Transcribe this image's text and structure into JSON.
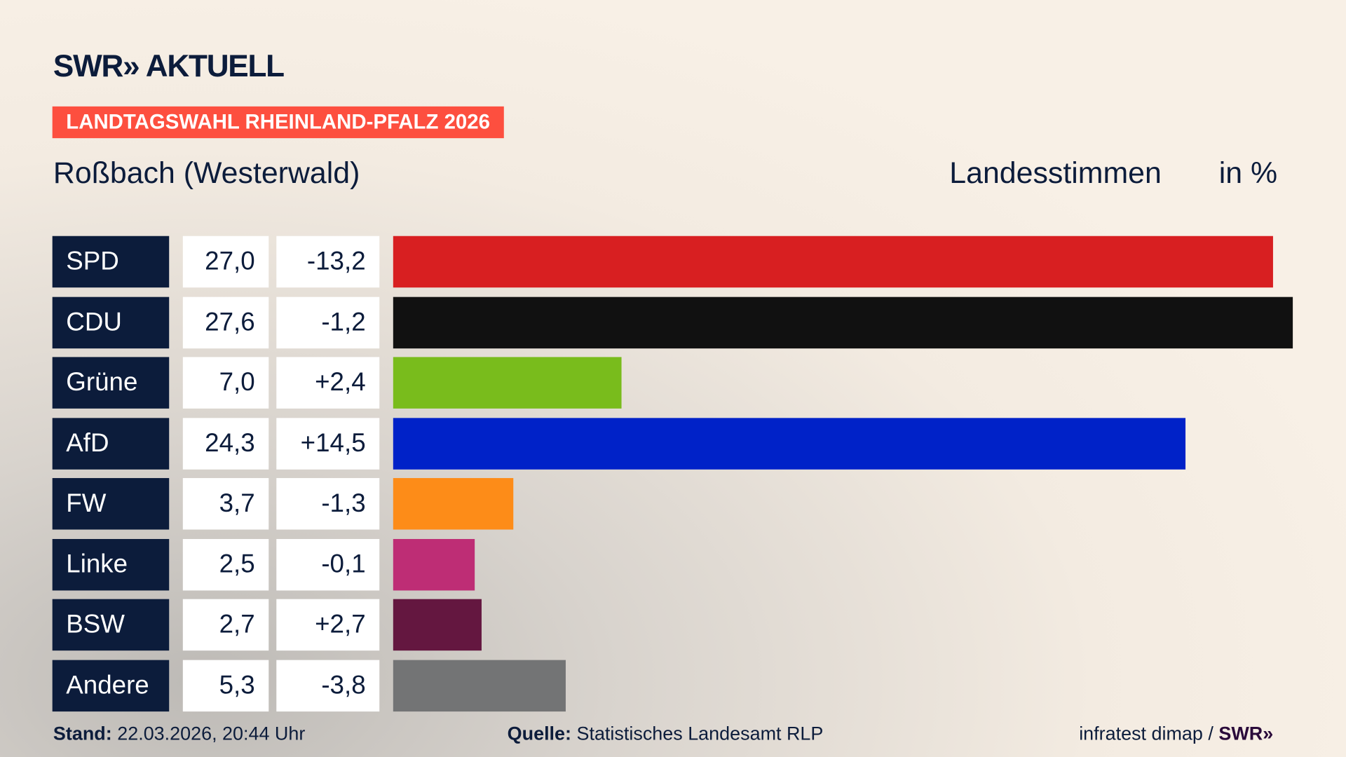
{
  "header": {
    "logo": "SWR» AKTUELL",
    "badge": "LANDTAGSWAHL RHEINLAND-PFALZ 2026",
    "location": "Roßbach (Westerwald)",
    "vote_type": "Landesstimmen",
    "unit": "in %"
  },
  "chart_data": {
    "type": "bar",
    "orientation": "horizontal",
    "xlim": [
      0,
      27.6
    ],
    "categories": [
      "SPD",
      "CDU",
      "Grüne",
      "AfD",
      "FW",
      "Linke",
      "BSW",
      "Andere"
    ],
    "values": [
      27.0,
      27.6,
      7.0,
      24.3,
      3.7,
      2.5,
      2.7,
      5.3
    ],
    "value_labels": [
      "27,0",
      "27,6",
      "7,0",
      "24,3",
      "3,7",
      "2,5",
      "2,7",
      "5,3"
    ],
    "diff_labels": [
      "-13,2",
      "-1,2",
      "+2,4",
      "+14,5",
      "-1,3",
      "-0,1",
      "+2,7",
      "-3,8"
    ],
    "colors": [
      "#d81f21",
      "#111111",
      "#79bc1c",
      "#0022c8",
      "#fd8c18",
      "#be2d75",
      "#641740",
      "#737475"
    ]
  },
  "footer": {
    "stand_label": "Stand:",
    "stand_value": "22.03.2026, 20:44 Uhr",
    "source_label": "Quelle:",
    "source_value": "Statistisches Landesamt RLP",
    "credit": "infratest dimap / ",
    "credit_logo": "SWR»"
  }
}
